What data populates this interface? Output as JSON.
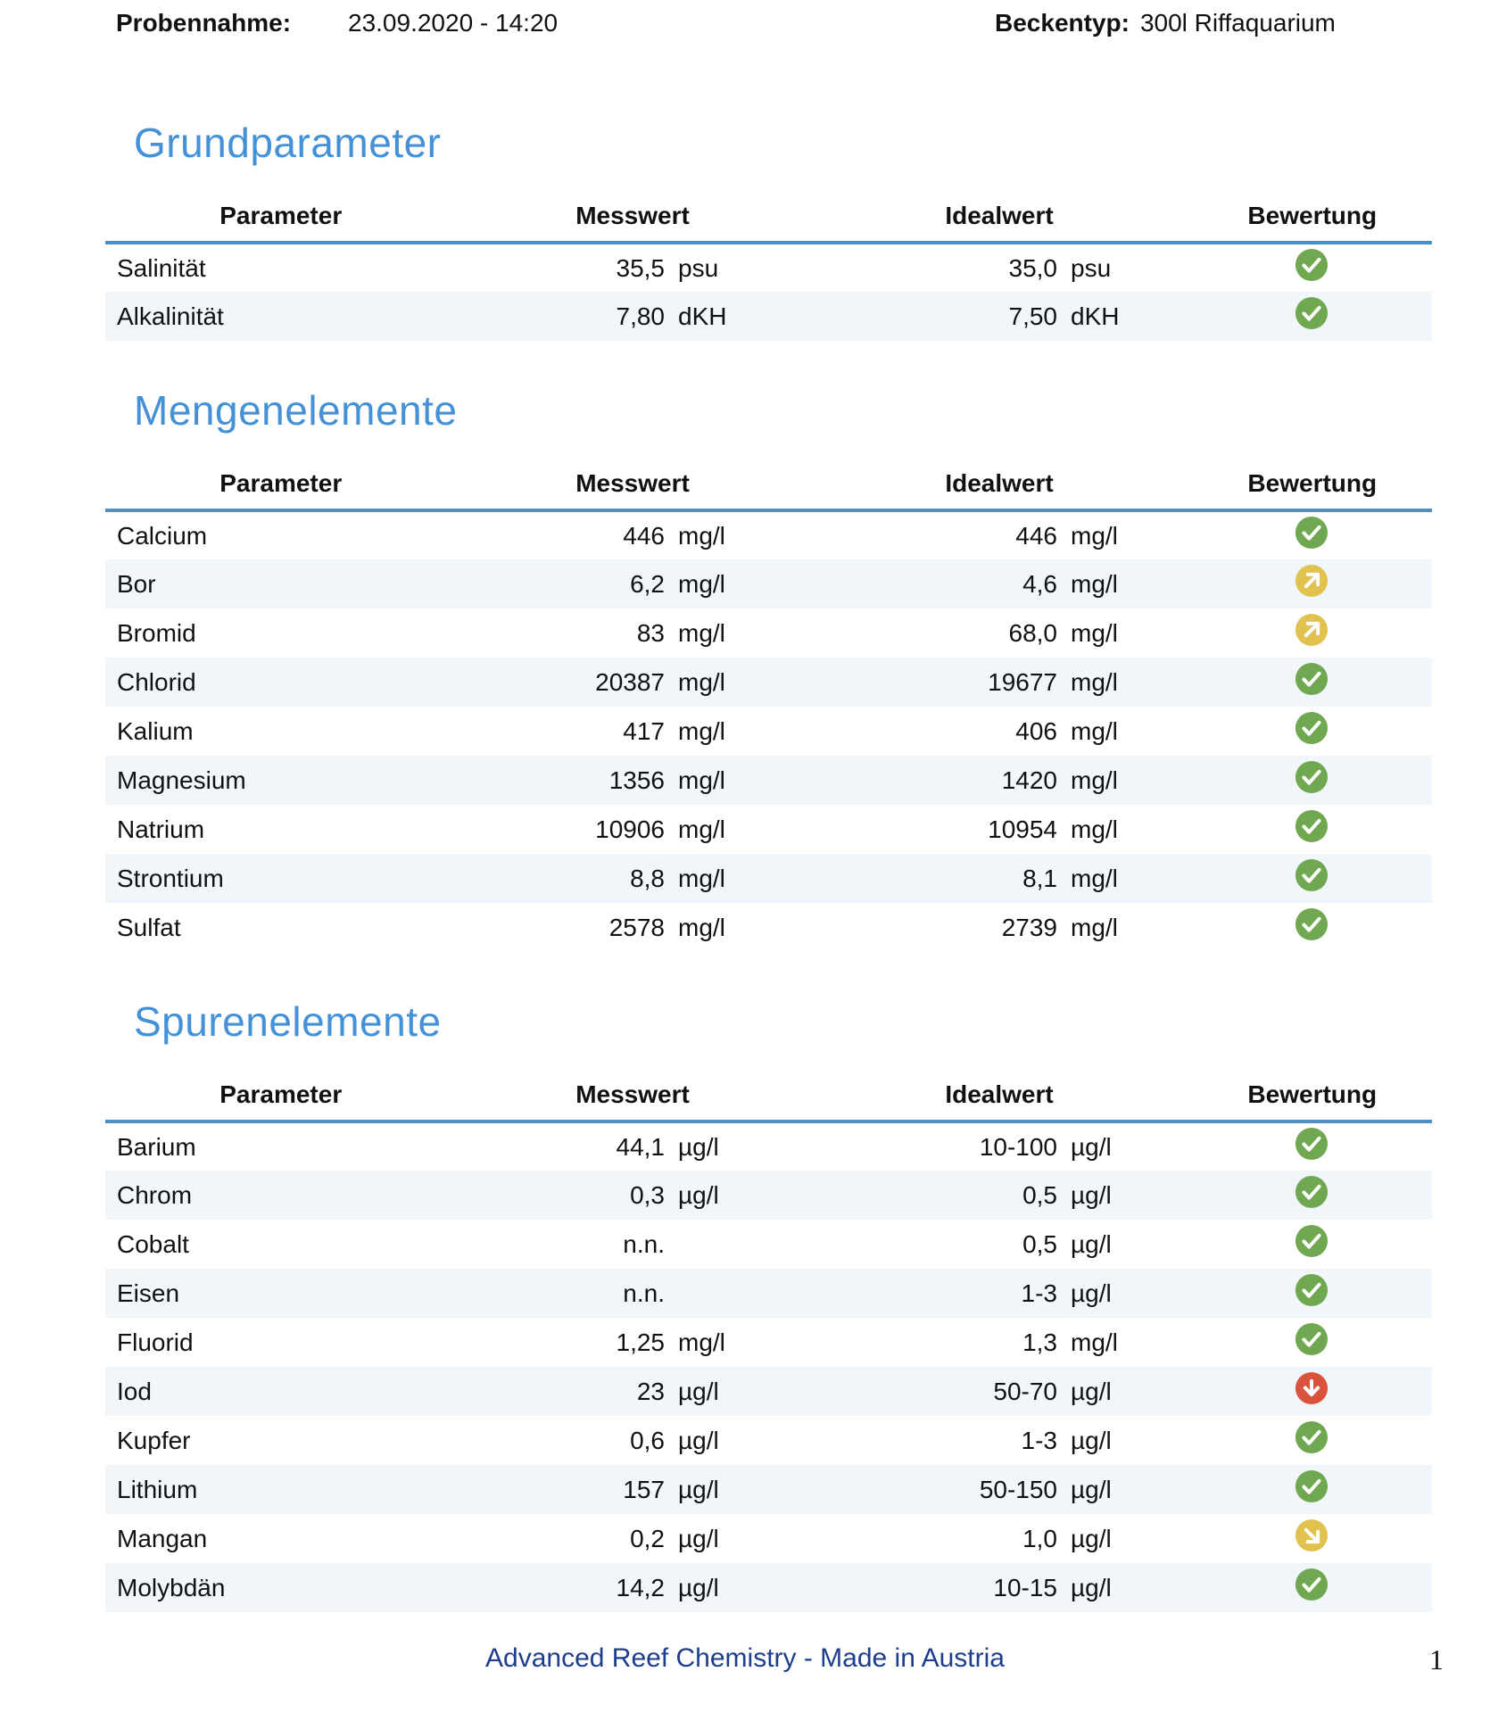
{
  "header": {
    "sample_label": "Probennahme:",
    "sample_value": "23.09.2020 - 14:20",
    "tank_label": "Beckentyp:",
    "tank_value": "300l Riffaquarium"
  },
  "columns": {
    "parameter": "Parameter",
    "messwert": "Messwert",
    "idealwert": "Idealwert",
    "bewertung": "Bewertung"
  },
  "colors": {
    "heading": "#4591d7",
    "header_line": "#4a90c8",
    "row_alt": "#f0f6fa",
    "ok": "#70a751",
    "warn": "#e2c24e",
    "bad": "#d9523c",
    "footer": "#1d3d8d"
  },
  "sections": [
    {
      "title": "Grundparameter",
      "rows": [
        {
          "parameter": "Salinität",
          "value": "35,5",
          "unit": "psu",
          "ideal": "35,0",
          "ideal_unit": "psu",
          "rating": "ok"
        },
        {
          "parameter": "Alkalinität",
          "value": "7,80",
          "unit": "dKH",
          "ideal": "7,50",
          "ideal_unit": "dKH",
          "rating": "ok"
        }
      ]
    },
    {
      "title": "Mengenelemente",
      "rows": [
        {
          "parameter": "Calcium",
          "value": "446",
          "unit": "mg/l",
          "ideal": "446",
          "ideal_unit": "mg/l",
          "rating": "ok"
        },
        {
          "parameter": "Bor",
          "value": "6,2",
          "unit": "mg/l",
          "ideal": "4,6",
          "ideal_unit": "mg/l",
          "rating": "high"
        },
        {
          "parameter": "Bromid",
          "value": "83",
          "unit": "mg/l",
          "ideal": "68,0",
          "ideal_unit": "mg/l",
          "rating": "high"
        },
        {
          "parameter": "Chlorid",
          "value": "20387",
          "unit": "mg/l",
          "ideal": "19677",
          "ideal_unit": "mg/l",
          "rating": "ok"
        },
        {
          "parameter": "Kalium",
          "value": "417",
          "unit": "mg/l",
          "ideal": "406",
          "ideal_unit": "mg/l",
          "rating": "ok"
        },
        {
          "parameter": "Magnesium",
          "value": "1356",
          "unit": "mg/l",
          "ideal": "1420",
          "ideal_unit": "mg/l",
          "rating": "ok"
        },
        {
          "parameter": "Natrium",
          "value": "10906",
          "unit": "mg/l",
          "ideal": "10954",
          "ideal_unit": "mg/l",
          "rating": "ok"
        },
        {
          "parameter": "Strontium",
          "value": "8,8",
          "unit": "mg/l",
          "ideal": "8,1",
          "ideal_unit": "mg/l",
          "rating": "ok"
        },
        {
          "parameter": "Sulfat",
          "value": "2578",
          "unit": "mg/l",
          "ideal": "2739",
          "ideal_unit": "mg/l",
          "rating": "ok"
        }
      ]
    },
    {
      "title": "Spurenelemente",
      "rows": [
        {
          "parameter": "Barium",
          "value": "44,1",
          "unit": "µg/l",
          "ideal": "10-100",
          "ideal_unit": "µg/l",
          "rating": "ok"
        },
        {
          "parameter": "Chrom",
          "value": "0,3",
          "unit": "µg/l",
          "ideal": "0,5",
          "ideal_unit": "µg/l",
          "rating": "ok"
        },
        {
          "parameter": "Cobalt",
          "value": "n.n.",
          "unit": "",
          "ideal": "0,5",
          "ideal_unit": "µg/l",
          "rating": "ok"
        },
        {
          "parameter": "Eisen",
          "value": "n.n.",
          "unit": "",
          "ideal": "1-3",
          "ideal_unit": "µg/l",
          "rating": "ok"
        },
        {
          "parameter": "Fluorid",
          "value": "1,25",
          "unit": "mg/l",
          "ideal": "1,3",
          "ideal_unit": "mg/l",
          "rating": "ok"
        },
        {
          "parameter": "Iod",
          "value": "23",
          "unit": "µg/l",
          "ideal": "50-70",
          "ideal_unit": "µg/l",
          "rating": "low"
        },
        {
          "parameter": "Kupfer",
          "value": "0,6",
          "unit": "µg/l",
          "ideal": "1-3",
          "ideal_unit": "µg/l",
          "rating": "ok"
        },
        {
          "parameter": "Lithium",
          "value": "157",
          "unit": "µg/l",
          "ideal": "50-150",
          "ideal_unit": "µg/l",
          "rating": "ok"
        },
        {
          "parameter": "Mangan",
          "value": "0,2",
          "unit": "µg/l",
          "ideal": "1,0",
          "ideal_unit": "µg/l",
          "rating": "low_slight"
        },
        {
          "parameter": "Molybdän",
          "value": "14,2",
          "unit": "µg/l",
          "ideal": "10-15",
          "ideal_unit": "µg/l",
          "rating": "ok"
        }
      ]
    }
  ],
  "footer": {
    "text": "Advanced Reef Chemistry - Made in Austria",
    "page_number": "1"
  }
}
